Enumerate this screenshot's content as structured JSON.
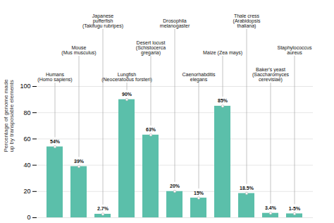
{
  "chart_data": {
    "type": "bar",
    "categories": [
      "Humans\n(Homo sapiens)",
      "Mouse\n(Mus musculus)",
      "Japanese\npufferfish\n(Takifugu rubripes)",
      "Lungfish\n(Neoceratodus forsteri)",
      "Desert locust\n(Schistocerca\ngregaria)",
      "Drosophila\nmelanogaster",
      "Caenorhabditis\nelegans",
      "Maize (Zea mays)",
      "Thale cress\n(Arabidopsis\nthaliana)",
      "Baker's yeast\n(Saccharomyces\ncerevisiae)",
      "Staphylococcus\naureus"
    ],
    "values": [
      54,
      39,
      2.7,
      90,
      63,
      20,
      15,
      85,
      18.5,
      3.4,
      3
    ],
    "value_labels": [
      "54%",
      "39%",
      "2.7%",
      "90%",
      "63%",
      "20%",
      "15%",
      "85%",
      "18.5%",
      "3.4%",
      "1-5%"
    ],
    "ylabel": "Percentage of genome made\nup by transposable elements",
    "ylim": [
      0,
      100
    ],
    "yticks": [
      0,
      20,
      40,
      60,
      80,
      100
    ],
    "grid": true,
    "data_labels": true,
    "color": "#5bbfaa"
  }
}
